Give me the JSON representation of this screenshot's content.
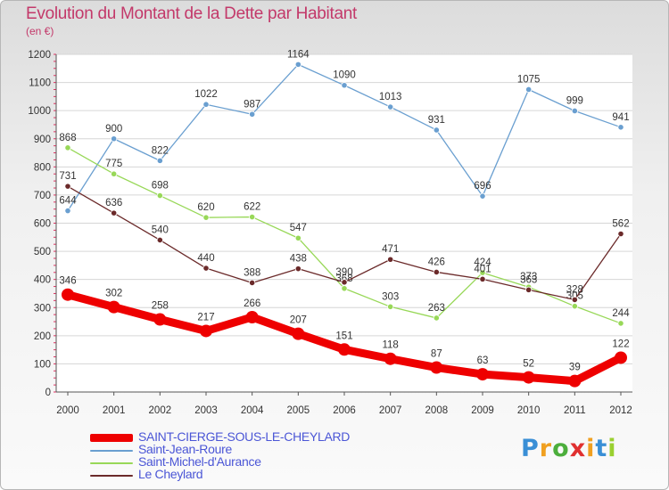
{
  "chart_data": {
    "type": "line",
    "title": "Evolution du Montant de la Dette par Habitant",
    "subtitle": "(en €)",
    "categories": [
      "2000",
      "2001",
      "2002",
      "2003",
      "2004",
      "2005",
      "2006",
      "2007",
      "2008",
      "2009",
      "2010",
      "2011",
      "2012"
    ],
    "ylim": [
      0,
      1200
    ],
    "yticks": [
      0,
      100,
      200,
      300,
      400,
      500,
      600,
      700,
      800,
      900,
      1000,
      1100,
      1200
    ],
    "grid": true,
    "legend_position": "bottom-left",
    "series": [
      {
        "name": "SAINT-CIERGE-SOUS-LE-CHEYLARD",
        "color": "#ee0000",
        "values": [
          346,
          302,
          258,
          217,
          266,
          207,
          151,
          118,
          87,
          63,
          52,
          39,
          122
        ]
      },
      {
        "name": "Saint-Jean-Roure",
        "color": "#6a9fd0",
        "values": [
          644,
          900,
          822,
          1022,
          987,
          1164,
          1090,
          1013,
          931,
          696,
          1075,
          999,
          941
        ]
      },
      {
        "name": "Saint-Michel-d'Aurance",
        "color": "#98d858",
        "values": [
          868,
          775,
          698,
          620,
          622,
          547,
          368,
          303,
          263,
          424,
          373,
          305,
          244
        ]
      },
      {
        "name": "Le Cheylard",
        "color": "#6b2a2a",
        "values": [
          731,
          636,
          540,
          440,
          388,
          438,
          390,
          471,
          426,
          401,
          363,
          328,
          562
        ]
      }
    ]
  },
  "logo": {
    "letters": [
      "P",
      "r",
      "o",
      "x",
      "i",
      "t",
      "i"
    ],
    "colors": [
      "#3a8fd6",
      "#f0a020",
      "#4cae3c",
      "#e03030",
      "#f0a020",
      "#3a8fd6",
      "#9ad030"
    ]
  }
}
